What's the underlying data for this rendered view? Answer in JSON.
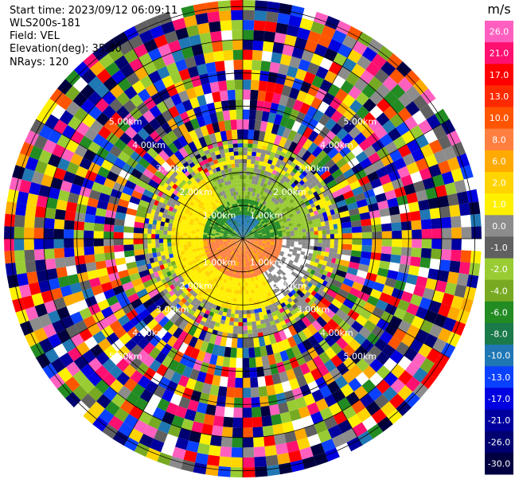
{
  "header": {
    "start_time": "Start time: 2023/09/12 06:09:11",
    "instrument": "WLS200s-181",
    "field": "Field: VEL",
    "elevation": "Elevation(deg): 35.30",
    "nrays": "NRays: 120"
  },
  "chart_data": {
    "type": "heatmap",
    "projection": "polar-ppi",
    "field": "VEL",
    "units_label": "m/s",
    "nrays": 120,
    "max_range_km": 7.2,
    "range_ring_labels": [
      "1.00km",
      "2.00km",
      "3.00km",
      "4.00km",
      "5.00km"
    ],
    "range_rings_km": [
      1,
      2,
      3,
      4,
      5,
      6,
      7
    ],
    "colorbar": {
      "tick_labels": [
        "26.0",
        "21.0",
        "17.0",
        "13.0",
        "10.0",
        "8.0",
        "6.0",
        "2.0",
        "1.0",
        "0.0",
        "-1.0",
        "-2.0",
        "-4.0",
        "-6.0",
        "-8.0",
        "-10.0",
        "-13.0",
        "-17.0",
        "-21.0",
        "-26.0",
        "-30.0"
      ],
      "colors": [
        "#ff60c0",
        "#ff1070",
        "#ff0000",
        "#ff2a00",
        "#ff5500",
        "#ff7f40",
        "#ffaa00",
        "#ffd400",
        "#fff000",
        "#8c8c8c",
        "#606060",
        "#99cc33",
        "#77aa22",
        "#228b22",
        "#1a7a4a",
        "#1f77b4",
        "#0a40ff",
        "#0000e0",
        "#0000a0",
        "#000070",
        "#000040"
      ]
    },
    "colors": {
      "near_approaching": "#1f77b4",
      "near_receding": "#ff7f40",
      "green_zone": "#228b22",
      "yellow_zone": "#fff000",
      "gray_zone": "#8c8c8c",
      "ring_color": "#000000",
      "ring_label_color": "#ffffff"
    }
  }
}
